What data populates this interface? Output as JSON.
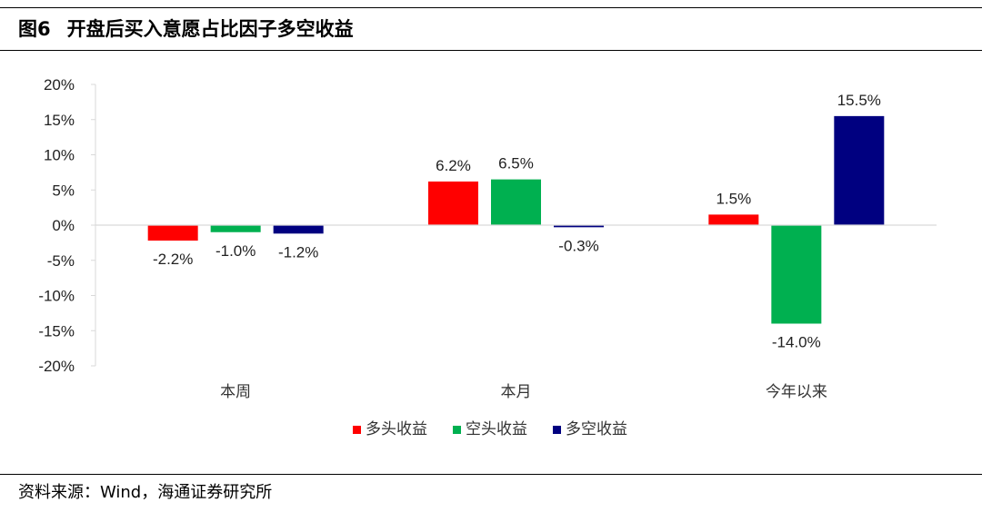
{
  "figure": {
    "number": "图6",
    "title": "开盘后买入意愿占比因子多空收益"
  },
  "source": "资料来源：Wind，海通证券研究所",
  "chart_data": {
    "type": "bar",
    "categories": [
      "本周",
      "本月",
      "今年以来"
    ],
    "series": [
      {
        "name": "多头收益",
        "color": "#FF0000",
        "values": [
          -2.2,
          6.2,
          1.5
        ]
      },
      {
        "name": "空头收益",
        "color": "#00B050",
        "values": [
          -1.0,
          6.5,
          -14.0
        ]
      },
      {
        "name": "多空收益",
        "color": "#000080",
        "values": [
          -1.2,
          -0.3,
          15.5
        ]
      }
    ],
    "ylim": [
      -20,
      20
    ],
    "yticks": [
      20,
      15,
      10,
      5,
      0,
      -5,
      -10,
      -15,
      -20
    ],
    "value_format": "percent_1dp",
    "grid": false,
    "legend_position": "bottom"
  }
}
